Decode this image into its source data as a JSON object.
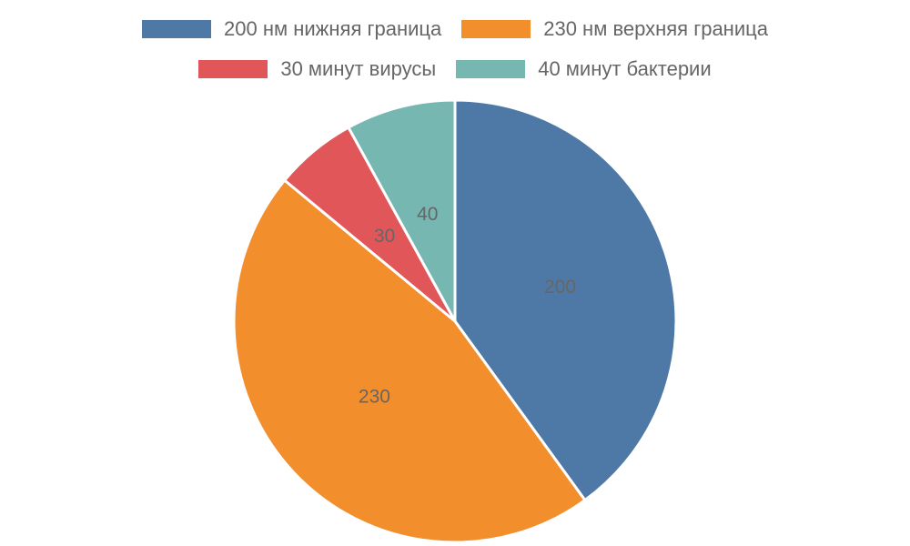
{
  "chart_data": {
    "type": "pie",
    "legend_position": "top",
    "slices": [
      {
        "name": "200 нм нижняя граница",
        "value": 200,
        "label": "200",
        "color": "#4e79a7"
      },
      {
        "name": "230 нм верхняя граница",
        "value": 230,
        "label": "230",
        "color": "#f28e2b"
      },
      {
        "name": "30 минут вирусы",
        "value": 30,
        "label": "30",
        "color": "#e15759"
      },
      {
        "name": "40 минут бактерии",
        "value": 40,
        "label": "40",
        "color": "#76b7b2"
      }
    ]
  }
}
